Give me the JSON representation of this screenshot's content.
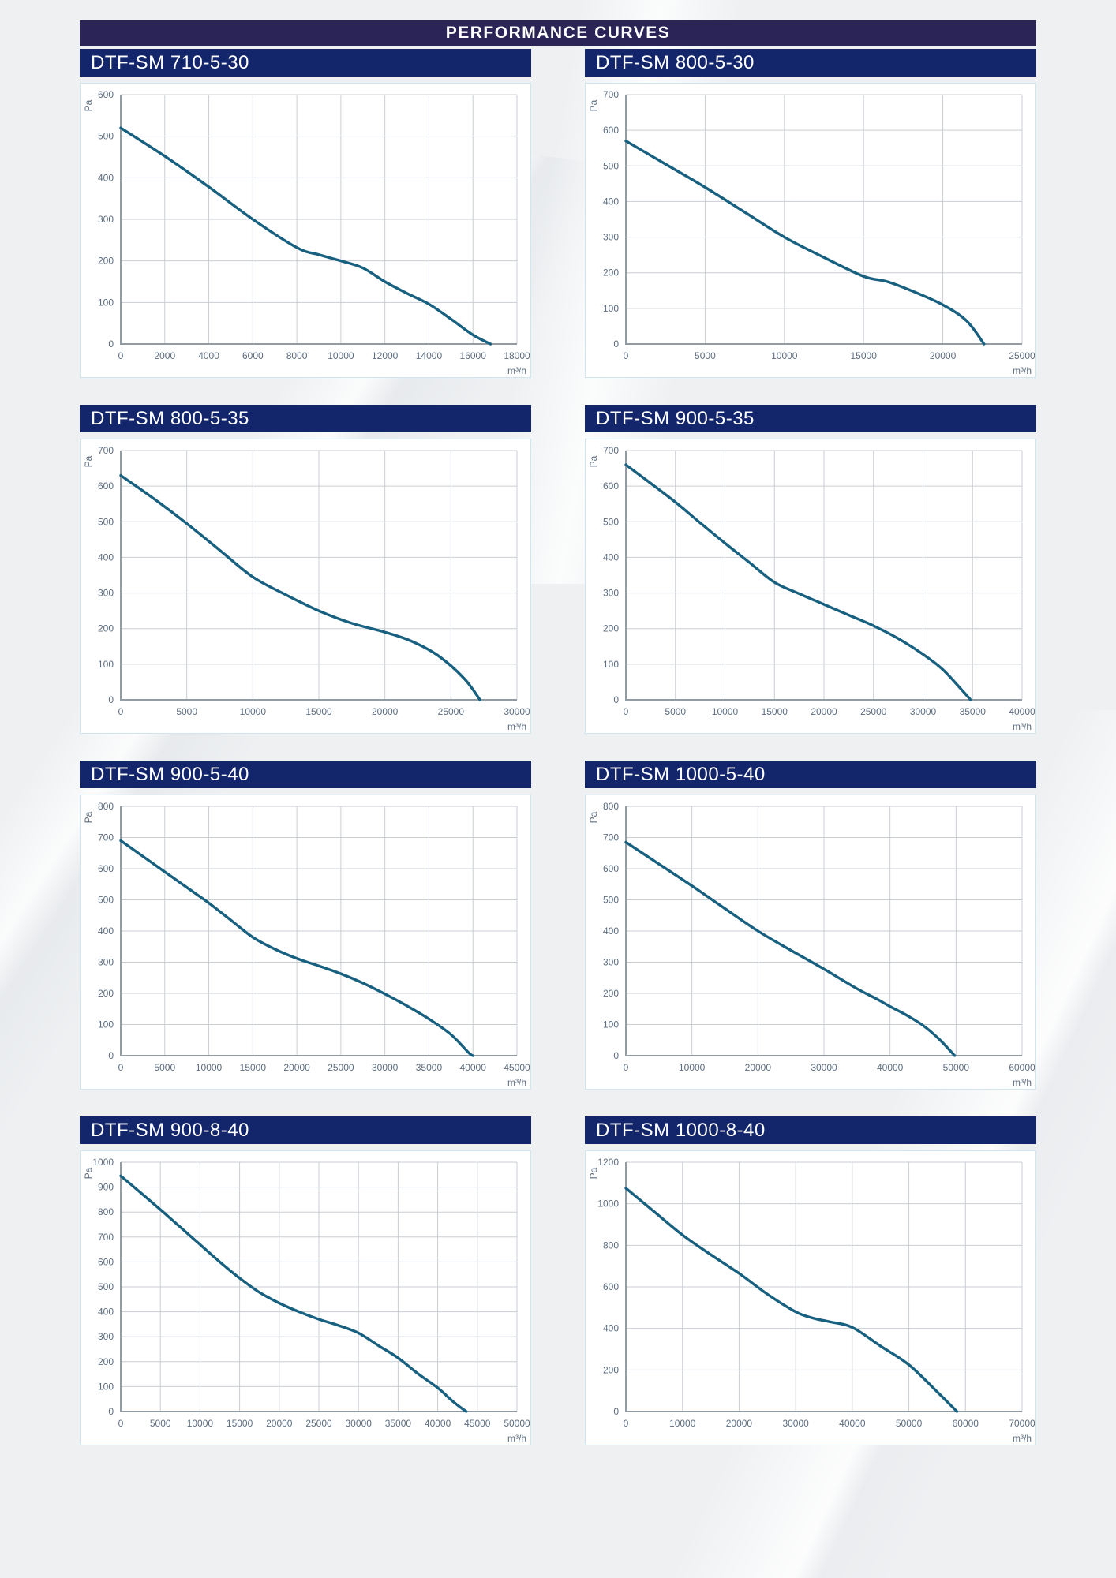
{
  "page": {
    "header_title": "PERFORMANCE CURVES"
  },
  "colors": {
    "page_bg": "#EEF0F2",
    "header_bg": "#2B2456",
    "chart_title_bg": "#13266B",
    "title_text": "#FFFFFF",
    "curve": "#17607F",
    "grid_line": "#C9CED3",
    "axis_spine": "#939BA3",
    "tick_text": "#5D6D80",
    "panel_border": "#CFE5EF",
    "panel_bg": "#FFFFFF"
  },
  "chart_data": [
    {
      "type": "line",
      "title": "DTF-SM 710-5-30",
      "ylabel": "Pa",
      "xlabel": "m³/h",
      "ylim": [
        0,
        600
      ],
      "ystep": 100,
      "xlim": [
        0,
        18000
      ],
      "xstep": 2000,
      "grid": true,
      "series": [
        {
          "name": "pressure-vs-flow",
          "points": [
            [
              0,
              520
            ],
            [
              2000,
              452
            ],
            [
              4000,
              378
            ],
            [
              6000,
              300
            ],
            [
              8000,
              232
            ],
            [
              9000,
              215
            ],
            [
              10000,
              200
            ],
            [
              11000,
              183
            ],
            [
              12000,
              150
            ],
            [
              13000,
              122
            ],
            [
              14000,
              96
            ],
            [
              15000,
              60
            ],
            [
              16000,
              22
            ],
            [
              16800,
              0
            ]
          ]
        }
      ]
    },
    {
      "type": "line",
      "title": "DTF-SM 800-5-30",
      "ylabel": "Pa",
      "xlabel": "m³/h",
      "ylim": [
        0,
        700
      ],
      "ystep": 100,
      "xlim": [
        0,
        25000
      ],
      "xstep": 5000,
      "grid": true,
      "series": [
        {
          "name": "pressure-vs-flow",
          "points": [
            [
              0,
              570
            ],
            [
              2500,
              505
            ],
            [
              5000,
              440
            ],
            [
              7500,
              370
            ],
            [
              10000,
              300
            ],
            [
              12500,
              243
            ],
            [
              15000,
              190
            ],
            [
              16500,
              175
            ],
            [
              18000,
              150
            ],
            [
              20000,
              110
            ],
            [
              21500,
              65
            ],
            [
              22600,
              0
            ]
          ]
        }
      ]
    },
    {
      "type": "line",
      "title": "DTF-SM 800-5-35",
      "ylabel": "Pa",
      "xlabel": "m³/h",
      "ylim": [
        0,
        700
      ],
      "ystep": 100,
      "xlim": [
        0,
        30000
      ],
      "xstep": 5000,
      "grid": true,
      "series": [
        {
          "name": "pressure-vs-flow",
          "points": [
            [
              0,
              630
            ],
            [
              2500,
              565
            ],
            [
              5000,
              495
            ],
            [
              7500,
              420
            ],
            [
              10000,
              345
            ],
            [
              12500,
              295
            ],
            [
              15000,
              250
            ],
            [
              17500,
              215
            ],
            [
              20000,
              190
            ],
            [
              22000,
              165
            ],
            [
              24000,
              125
            ],
            [
              26000,
              60
            ],
            [
              27200,
              0
            ]
          ]
        }
      ]
    },
    {
      "type": "line",
      "title": "DTF-SM 900-5-35",
      "ylabel": "Pa",
      "xlabel": "m³/h",
      "ylim": [
        0,
        700
      ],
      "ystep": 100,
      "xlim": [
        0,
        40000
      ],
      "xstep": 5000,
      "grid": true,
      "series": [
        {
          "name": "pressure-vs-flow",
          "points": [
            [
              0,
              660
            ],
            [
              2500,
              608
            ],
            [
              5000,
              555
            ],
            [
              7500,
              497
            ],
            [
              10000,
              440
            ],
            [
              12500,
              385
            ],
            [
              15000,
              330
            ],
            [
              17500,
              298
            ],
            [
              20000,
              268
            ],
            [
              22500,
              238
            ],
            [
              25000,
              208
            ],
            [
              27500,
              172
            ],
            [
              30000,
              128
            ],
            [
              32000,
              85
            ],
            [
              34000,
              25
            ],
            [
              34800,
              0
            ]
          ]
        }
      ]
    },
    {
      "type": "line",
      "title": "DTF-SM 900-5-40",
      "ylabel": "Pa",
      "xlabel": "m³/h",
      "ylim": [
        0,
        800
      ],
      "ystep": 100,
      "xlim": [
        0,
        45000
      ],
      "xstep": 5000,
      "grid": true,
      "series": [
        {
          "name": "pressure-vs-flow",
          "points": [
            [
              0,
              690
            ],
            [
              2500,
              640
            ],
            [
              5000,
              590
            ],
            [
              7500,
              540
            ],
            [
              10000,
              490
            ],
            [
              12500,
              435
            ],
            [
              15000,
              380
            ],
            [
              17500,
              342
            ],
            [
              20000,
              312
            ],
            [
              22500,
              288
            ],
            [
              25000,
              263
            ],
            [
              27500,
              233
            ],
            [
              30000,
              198
            ],
            [
              32500,
              160
            ],
            [
              35000,
              118
            ],
            [
              37500,
              68
            ],
            [
              39500,
              10
            ],
            [
              40000,
              0
            ]
          ]
        }
      ]
    },
    {
      "type": "line",
      "title": "DTF-SM 1000-5-40",
      "ylabel": "Pa",
      "xlabel": "m³/h",
      "ylim": [
        0,
        800
      ],
      "ystep": 100,
      "xlim": [
        0,
        60000
      ],
      "xstep": 10000,
      "grid": true,
      "series": [
        {
          "name": "pressure-vs-flow",
          "points": [
            [
              0,
              685
            ],
            [
              5000,
              615
            ],
            [
              10000,
              545
            ],
            [
              15000,
              472
            ],
            [
              20000,
              400
            ],
            [
              25000,
              338
            ],
            [
              30000,
              278
            ],
            [
              35000,
              215
            ],
            [
              38000,
              182
            ],
            [
              40000,
              158
            ],
            [
              42500,
              130
            ],
            [
              45000,
              97
            ],
            [
              47500,
              52
            ],
            [
              49800,
              0
            ]
          ]
        }
      ]
    },
    {
      "type": "line",
      "title": "DTF-SM 900-8-40",
      "ylabel": "Pa",
      "xlabel": "m³/h",
      "ylim": [
        0,
        1000
      ],
      "ystep": 100,
      "xlim": [
        0,
        50000
      ],
      "xstep": 5000,
      "grid": true,
      "series": [
        {
          "name": "pressure-vs-flow",
          "points": [
            [
              0,
              945
            ],
            [
              2500,
              878
            ],
            [
              5000,
              810
            ],
            [
              7500,
              740
            ],
            [
              10000,
              670
            ],
            [
              12500,
              600
            ],
            [
              15000,
              535
            ],
            [
              17500,
              478
            ],
            [
              20000,
              435
            ],
            [
              22500,
              400
            ],
            [
              25000,
              370
            ],
            [
              27500,
              345
            ],
            [
              30000,
              315
            ],
            [
              32500,
              265
            ],
            [
              35000,
              215
            ],
            [
              37500,
              152
            ],
            [
              40000,
              95
            ],
            [
              42000,
              38
            ],
            [
              43600,
              0
            ]
          ]
        }
      ]
    },
    {
      "type": "line",
      "title": "DTF-SM 1000-8-40",
      "ylabel": "Pa",
      "xlabel": "m³/h",
      "ylim": [
        0,
        1200
      ],
      "ystep": 200,
      "xlim": [
        0,
        70000
      ],
      "xstep": 10000,
      "grid": true,
      "series": [
        {
          "name": "pressure-vs-flow",
          "points": [
            [
              0,
              1075
            ],
            [
              5000,
              962
            ],
            [
              10000,
              850
            ],
            [
              15000,
              755
            ],
            [
              20000,
              665
            ],
            [
              25000,
              565
            ],
            [
              30000,
              480
            ],
            [
              33000,
              450
            ],
            [
              36000,
              432
            ],
            [
              40000,
              405
            ],
            [
              45000,
              315
            ],
            [
              50000,
              225
            ],
            [
              55000,
              95
            ],
            [
              58500,
              0
            ]
          ]
        }
      ]
    }
  ]
}
